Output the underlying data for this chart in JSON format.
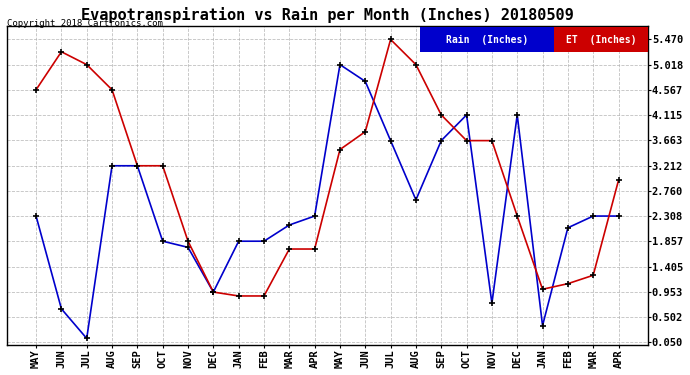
{
  "title": "Evapotranspiration vs Rain per Month (Inches) 20180509",
  "copyright_text": "Copyright 2018 Cartronics.com",
  "months": [
    "MAY",
    "JUN",
    "JUL",
    "AUG",
    "SEP",
    "OCT",
    "NOV",
    "DEC",
    "JAN",
    "FEB",
    "MAR",
    "APR",
    "MAY",
    "JUN",
    "JUL",
    "AUG",
    "SEP",
    "OCT",
    "NOV",
    "DEC",
    "JAN",
    "FEB",
    "MAR",
    "APR"
  ],
  "rain_values": [
    2.31,
    0.65,
    0.12,
    3.21,
    3.21,
    1.86,
    1.75,
    0.95,
    1.86,
    1.86,
    2.15,
    2.31,
    5.02,
    4.72,
    3.66,
    2.6,
    3.66,
    4.12,
    0.75,
    4.12,
    0.35,
    2.1,
    2.31,
    2.31
  ],
  "et_values": [
    4.57,
    5.25,
    5.02,
    4.57,
    3.21,
    3.21,
    1.86,
    0.95,
    0.88,
    0.88,
    1.72,
    1.72,
    3.5,
    3.82,
    5.47,
    5.02,
    4.12,
    3.66,
    3.66,
    2.31,
    1.0,
    1.1,
    1.25,
    2.95
  ],
  "rain_color": "#0000cc",
  "et_color": "#cc0000",
  "bg_color": "#ffffff",
  "grid_color": "#b0b0b0",
  "yticks": [
    0.05,
    0.502,
    0.953,
    1.405,
    1.857,
    2.308,
    2.76,
    3.212,
    3.663,
    4.115,
    4.567,
    5.018,
    5.47
  ],
  "ylim_min": 0.0,
  "ylim_max": 5.72,
  "legend_rain_label": "Rain  (Inches)",
  "legend_et_label": "ET  (Inches)",
  "title_fontsize": 11,
  "tick_fontsize": 7.5,
  "copyright_fontsize": 6.5
}
